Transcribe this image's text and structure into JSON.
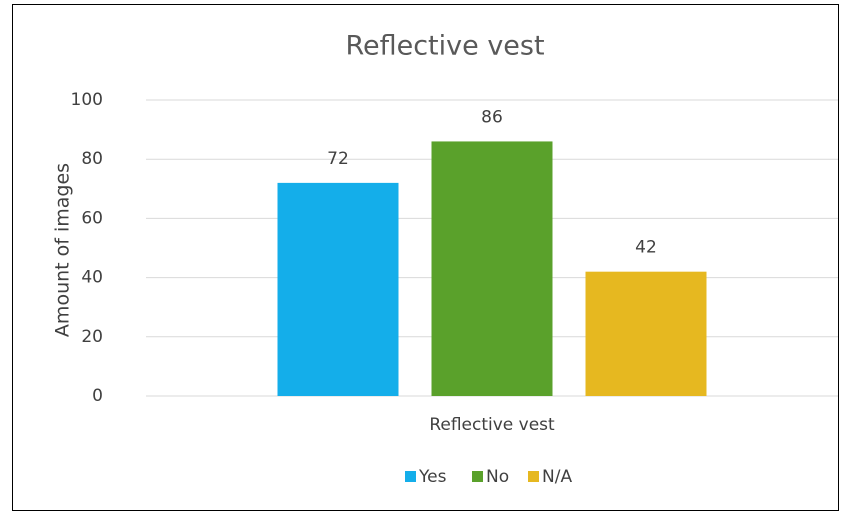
{
  "chart_data": {
    "type": "bar",
    "title": "Reflective vest",
    "ylabel": "Amount of images",
    "categories": [
      "Reflective vest"
    ],
    "series": [
      {
        "name": "Yes",
        "color": "#14aeea",
        "values": [
          72
        ]
      },
      {
        "name": "No",
        "color": "#5aa12b",
        "values": [
          86
        ]
      },
      {
        "name": "N/A",
        "color": "#e6b820",
        "values": [
          42
        ]
      }
    ],
    "ylim": [
      0,
      100
    ],
    "yticks": [
      0,
      20,
      40,
      60,
      80,
      100
    ],
    "grid": true,
    "legend": "bottom"
  }
}
